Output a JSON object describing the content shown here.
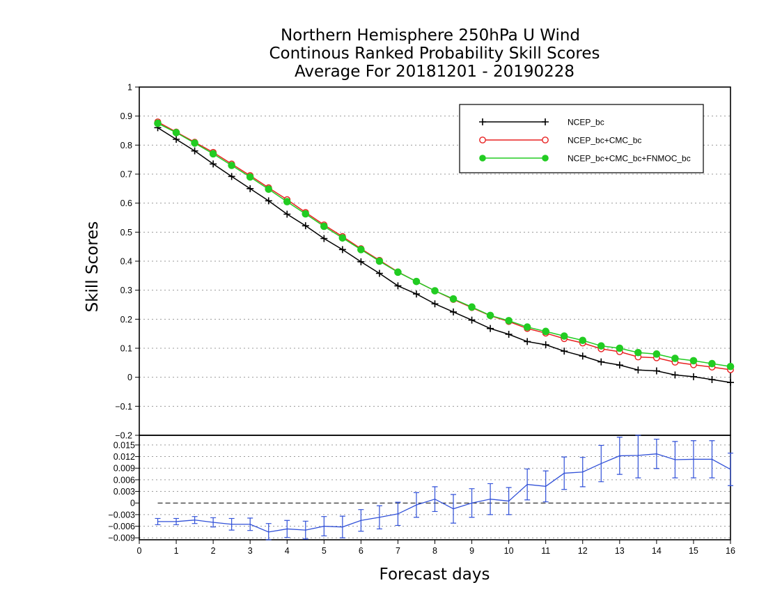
{
  "chart_data": {
    "type": "line",
    "title": [
      "Northern Hemisphere 250hPa U Wind",
      "Continous Ranked Probability Skill Scores",
      "Average For 20181201 - 20190228"
    ],
    "xlabel": "Forecast days",
    "ylabel": "Skill Scores",
    "xlim": [
      0,
      16
    ],
    "x_ticks": [
      "0",
      "1",
      "2",
      "3",
      "4",
      "5",
      "6",
      "7",
      "8",
      "9",
      "10",
      "11",
      "12",
      "13",
      "14",
      "15",
      "16"
    ],
    "x": [
      0.5,
      1.0,
      1.5,
      2.0,
      2.5,
      3.0,
      3.5,
      4.0,
      4.5,
      5.0,
      5.5,
      6.0,
      6.5,
      7.0,
      7.5,
      8.0,
      8.5,
      9.0,
      9.5,
      10.0,
      10.5,
      11.0,
      11.5,
      12.0,
      12.5,
      13.0,
      13.5,
      14.0,
      14.5,
      15.0,
      15.5,
      16.0
    ],
    "top_panel": {
      "ylim": [
        -0.2,
        1.0
      ],
      "y_ticks": [
        "1",
        "0.9",
        "0.8",
        "0.7",
        "0.6",
        "0.5",
        "0.4",
        "0.3",
        "0.2",
        "0.1",
        "0",
        "−0.1",
        "−0.2"
      ],
      "grid": true,
      "legend_position": "top-right",
      "series": [
        {
          "name": "NCEP_bc",
          "color": "#000000",
          "marker": "plus",
          "values": [
            0.86,
            0.82,
            0.78,
            0.735,
            0.692,
            0.65,
            0.608,
            0.562,
            0.522,
            0.478,
            0.44,
            0.398,
            0.358,
            0.315,
            0.287,
            0.253,
            0.225,
            0.197,
            0.168,
            0.148,
            0.123,
            0.112,
            0.09,
            0.073,
            0.053,
            0.042,
            0.025,
            0.022,
            0.008,
            0.002,
            -0.008,
            -0.018
          ]
        },
        {
          "name": "NCEP_bc+CMC_bc",
          "color": "#e82020",
          "marker": "open-circle",
          "values": [
            0.88,
            0.845,
            0.81,
            0.775,
            0.735,
            0.695,
            0.653,
            0.612,
            0.568,
            0.525,
            0.485,
            0.443,
            0.403,
            0.363,
            0.33,
            0.298,
            0.268,
            0.24,
            0.212,
            0.192,
            0.168,
            0.152,
            0.133,
            0.118,
            0.098,
            0.088,
            0.07,
            0.067,
            0.052,
            0.043,
            0.035,
            0.026
          ]
        },
        {
          "name": "NCEP_bc+CMC_bc+FNMOC_bc",
          "color": "#22cc22",
          "marker": "filled-circle",
          "values": [
            0.875,
            0.843,
            0.807,
            0.77,
            0.73,
            0.69,
            0.648,
            0.605,
            0.563,
            0.52,
            0.48,
            0.44,
            0.4,
            0.362,
            0.33,
            0.298,
            0.27,
            0.242,
            0.213,
            0.195,
            0.173,
            0.158,
            0.142,
            0.127,
            0.108,
            0.1,
            0.085,
            0.08,
            0.065,
            0.057,
            0.047,
            0.037
          ]
        }
      ]
    },
    "bottom_panel": {
      "ylim": [
        -0.0095,
        0.0175
      ],
      "y_ticks": [
        "0.015",
        "0.012",
        "0.009",
        "0.006",
        "0.003",
        "0",
        "−0.003",
        "−0.006",
        "−0.009"
      ],
      "tick_values": [
        0.015,
        0.012,
        0.009,
        0.006,
        0.003,
        0,
        -0.003,
        -0.006,
        -0.009
      ],
      "grid": true,
      "series": [
        {
          "color": "#3050d8",
          "values": [
            -0.0048,
            -0.0048,
            -0.0044,
            -0.005,
            -0.0055,
            -0.0055,
            -0.0075,
            -0.0067,
            -0.007,
            -0.006,
            -0.0062,
            -0.0045,
            -0.0037,
            -0.0028,
            -0.0005,
            0.001,
            -0.0015,
            0.0,
            0.001,
            0.0005,
            0.0048,
            0.0043,
            0.0077,
            0.008,
            0.0102,
            0.0122,
            0.0123,
            0.0127,
            0.0112,
            0.0113,
            0.0113,
            0.0087
          ],
          "error": [
            0.0008,
            0.0008,
            0.0009,
            0.0012,
            0.0015,
            0.0016,
            0.0022,
            0.0022,
            0.0023,
            0.0025,
            0.0028,
            0.0028,
            0.003,
            0.003,
            0.0032,
            0.0032,
            0.0037,
            0.0037,
            0.004,
            0.0035,
            0.004,
            0.004,
            0.0042,
            0.0038,
            0.0047,
            0.0048,
            0.0058,
            0.0038,
            0.0047,
            0.0048,
            0.0048,
            0.0042
          ]
        }
      ]
    }
  }
}
